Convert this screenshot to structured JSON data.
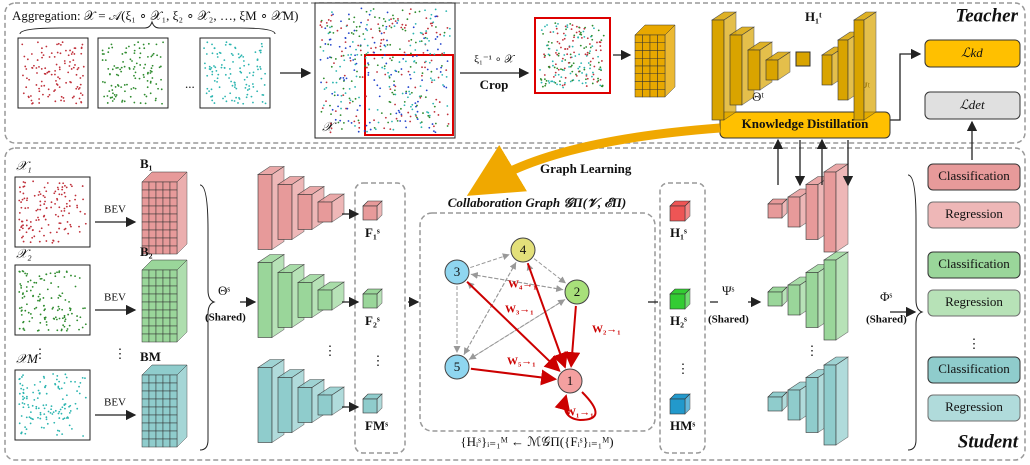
{
  "teacher": {
    "aggregation": "Aggregation: 𝒳 = 𝒜(ξ₁ ∘ 𝒳₁, ξ₂ ∘ 𝒳₂, …, ξM ∘ 𝒳M)",
    "ellipsis": "...",
    "aggregated_label": "𝒳",
    "crop_formula": "ξ₁⁻¹ ∘ 𝒳",
    "crop": "Crop",
    "feature": "H₁ᵗ",
    "encoder": "Θᵗ",
    "decoder": "Ψᵗ",
    "title": "Teacher"
  },
  "losses": {
    "kd": "ℒkd",
    "det": "ℒdet"
  },
  "distillation": "Knowledge Distillation",
  "graph_learning": "Graph Learning",
  "vdots": "⋮",
  "student": {
    "title": "Student",
    "inputs": [
      {
        "label": "𝒳₁",
        "bev": "BEV",
        "feature": "B₁"
      },
      {
        "label": "𝒳₂",
        "bev": "BEV",
        "feature": "B₂"
      },
      {
        "label": "𝒳M",
        "bev": "BEV",
        "feature": "BM"
      }
    ],
    "encoder": "Θˢ",
    "encoder_note": "(Shared)",
    "features": [
      "F₁ˢ",
      "F₂ˢ",
      "FMˢ"
    ],
    "graph": {
      "title": "Collaboration Graph 𝒢Π(𝒱, ℰΠ)",
      "nodes": [
        "1",
        "2",
        "3",
        "4",
        "5"
      ],
      "edges": [
        "W₄→₁",
        "W₃→₁",
        "W₂→₁",
        "W₅→₁",
        "W₁→₁"
      ],
      "formula": "{Hᵢˢ}ᵢ₌₁ᴹ ← ℳ𝒢Π({Fᵢˢ}ᵢ₌₁ᴹ)"
    },
    "outputs": [
      "H₁ˢ",
      "H₂ˢ",
      "HMˢ"
    ],
    "decoder": "Ψˢ",
    "decoder_note": "(Shared)",
    "head": "Φˢ",
    "head_note": "(Shared)",
    "heads": [
      {
        "classification": "Classification",
        "regression": "Regression"
      },
      {
        "classification": "Classification",
        "regression": "Regression"
      },
      {
        "classification": "Classification",
        "regression": "Regression"
      }
    ]
  }
}
